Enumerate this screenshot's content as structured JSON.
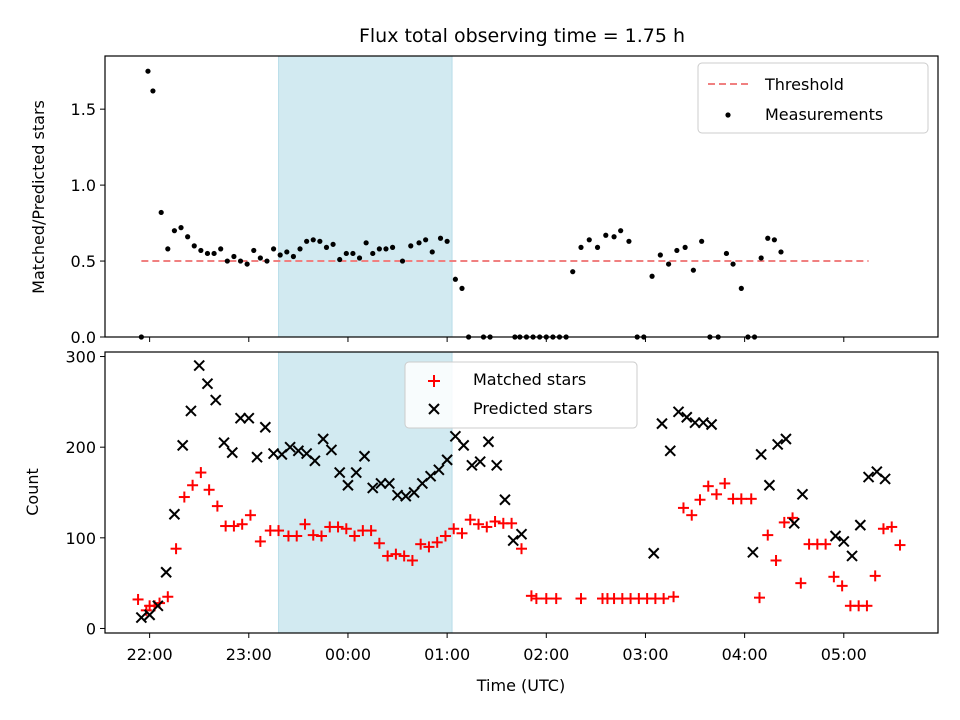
{
  "title": "Flux total observing time = 1.75 h",
  "colors": {
    "threshold": "#f08080",
    "measurement": "#000000",
    "matched": "#ff0000",
    "predicted": "#000000",
    "shaded": "#add8e6"
  },
  "chart_data": [
    {
      "type": "scatter",
      "title": "Flux total observing time = 1.75 h",
      "xlabel": "",
      "ylabel": "Matched/Predicted stars",
      "xlim": [
        "21:33",
        "05:57"
      ],
      "ylim": [
        0,
        1.85
      ],
      "yticks": [
        0.0,
        0.5,
        1.0,
        1.5
      ],
      "ytick_labels": [
        "0.0",
        "0.5",
        "1.0",
        "1.5"
      ],
      "xticks": [
        "22:00",
        "23:00",
        "00:00",
        "01:00",
        "02:00",
        "03:00",
        "04:00",
        "05:00"
      ],
      "shaded_interval": [
        "23:18",
        "01:03"
      ],
      "threshold": {
        "name": "Threshold",
        "value": 0.5,
        "x": [
          "21:55",
          "05:15"
        ]
      },
      "legend": {
        "placement": "upper right",
        "entries": [
          "Threshold",
          "Measurements"
        ]
      },
      "series": [
        {
          "name": "Measurements",
          "points": [
            [
              "21:55",
              0.0
            ],
            [
              "21:59",
              1.75
            ],
            [
              "22:02",
              1.62
            ],
            [
              "22:07",
              0.82
            ],
            [
              "22:11",
              0.58
            ],
            [
              "22:15",
              0.7
            ],
            [
              "22:19",
              0.72
            ],
            [
              "22:23",
              0.66
            ],
            [
              "22:27",
              0.6
            ],
            [
              "22:31",
              0.57
            ],
            [
              "22:35",
              0.55
            ],
            [
              "22:39",
              0.55
            ],
            [
              "22:43",
              0.58
            ],
            [
              "22:47",
              0.5
            ],
            [
              "22:51",
              0.53
            ],
            [
              "22:55",
              0.5
            ],
            [
              "22:59",
              0.48
            ],
            [
              "23:03",
              0.57
            ],
            [
              "23:07",
              0.52
            ],
            [
              "23:11",
              0.5
            ],
            [
              "23:15",
              0.58
            ],
            [
              "23:19",
              0.54
            ],
            [
              "23:23",
              0.56
            ],
            [
              "23:27",
              0.53
            ],
            [
              "23:31",
              0.58
            ],
            [
              "23:35",
              0.63
            ],
            [
              "23:39",
              0.64
            ],
            [
              "23:43",
              0.63
            ],
            [
              "23:47",
              0.59
            ],
            [
              "23:51",
              0.61
            ],
            [
              "23:55",
              0.51
            ],
            [
              "23:59",
              0.55
            ],
            [
              "00:03",
              0.55
            ],
            [
              "00:07",
              0.52
            ],
            [
              "00:11",
              0.62
            ],
            [
              "00:15",
              0.55
            ],
            [
              "00:19",
              0.58
            ],
            [
              "00:23",
              0.58
            ],
            [
              "00:27",
              0.59
            ],
            [
              "00:33",
              0.5
            ],
            [
              "00:38",
              0.6
            ],
            [
              "00:43",
              0.62
            ],
            [
              "00:47",
              0.64
            ],
            [
              "00:51",
              0.56
            ],
            [
              "00:56",
              0.65
            ],
            [
              "01:00",
              0.63
            ],
            [
              "01:05",
              0.38
            ],
            [
              "01:09",
              0.32
            ],
            [
              "01:13",
              0.0
            ],
            [
              "01:22",
              0.0
            ],
            [
              "01:26",
              0.0
            ],
            [
              "01:41",
              0.0
            ],
            [
              "01:44",
              0.0
            ],
            [
              "01:48",
              0.0
            ],
            [
              "01:52",
              0.0
            ],
            [
              "01:56",
              0.0
            ],
            [
              "02:00",
              0.0
            ],
            [
              "02:04",
              0.0
            ],
            [
              "02:08",
              0.0
            ],
            [
              "02:12",
              0.0
            ],
            [
              "02:16",
              0.43
            ],
            [
              "02:21",
              0.59
            ],
            [
              "02:26",
              0.64
            ],
            [
              "02:31",
              0.59
            ],
            [
              "02:36",
              0.67
            ],
            [
              "02:41",
              0.66
            ],
            [
              "02:45",
              0.7
            ],
            [
              "02:50",
              0.63
            ],
            [
              "02:55",
              0.0
            ],
            [
              "02:59",
              0.0
            ],
            [
              "03:04",
              0.4
            ],
            [
              "03:09",
              0.54
            ],
            [
              "03:14",
              0.48
            ],
            [
              "03:19",
              0.57
            ],
            [
              "03:24",
              0.59
            ],
            [
              "03:29",
              0.44
            ],
            [
              "03:34",
              0.63
            ],
            [
              "03:39",
              0.0
            ],
            [
              "03:44",
              0.0
            ],
            [
              "03:49",
              0.55
            ],
            [
              "03:53",
              0.48
            ],
            [
              "03:58",
              0.32
            ],
            [
              "04:02",
              0.0
            ],
            [
              "04:06",
              0.0
            ],
            [
              "04:10",
              0.52
            ],
            [
              "04:14",
              0.65
            ],
            [
              "04:18",
              0.64
            ],
            [
              "04:22",
              0.56
            ]
          ]
        }
      ]
    },
    {
      "type": "scatter",
      "xlabel": "Time (UTC)",
      "ylabel": "Count",
      "xlim": [
        "21:33",
        "05:57"
      ],
      "ylim": [
        -5,
        305
      ],
      "yticks": [
        0,
        100,
        200,
        300
      ],
      "ytick_labels": [
        "0",
        "100",
        "200",
        "300"
      ],
      "xticks": [
        "22:00",
        "23:00",
        "00:00",
        "01:00",
        "02:00",
        "03:00",
        "04:00",
        "05:00"
      ],
      "shaded_interval": [
        "23:18",
        "01:03"
      ],
      "legend": {
        "placement": "upper center",
        "entries": [
          "Matched stars",
          "Predicted stars"
        ]
      },
      "series": [
        {
          "name": "Matched stars",
          "marker": "+",
          "points": [
            [
              "21:53",
              32
            ],
            [
              "21:58",
              20
            ],
            [
              "22:00",
              25
            ],
            [
              "22:03",
              25
            ],
            [
              "22:06",
              28
            ],
            [
              "22:11",
              35
            ],
            [
              "22:16",
              88
            ],
            [
              "22:21",
              145
            ],
            [
              "22:26",
              158
            ],
            [
              "22:31",
              172
            ],
            [
              "22:36",
              153
            ],
            [
              "22:41",
              135
            ],
            [
              "22:46",
              113
            ],
            [
              "22:51",
              113
            ],
            [
              "22:56",
              115
            ],
            [
              "23:01",
              125
            ],
            [
              "23:07",
              96
            ],
            [
              "23:13",
              108
            ],
            [
              "23:18",
              108
            ],
            [
              "23:24",
              102
            ],
            [
              "23:29",
              102
            ],
            [
              "23:34",
              115
            ],
            [
              "23:39",
              103
            ],
            [
              "23:44",
              102
            ],
            [
              "23:49",
              112
            ],
            [
              "23:54",
              112
            ],
            [
              "23:59",
              110
            ],
            [
              "00:04",
              102
            ],
            [
              "00:09",
              108
            ],
            [
              "00:14",
              108
            ],
            [
              "00:19",
              94
            ],
            [
              "00:24",
              80
            ],
            [
              "00:29",
              82
            ],
            [
              "00:34",
              80
            ],
            [
              "00:39",
              75
            ],
            [
              "00:44",
              93
            ],
            [
              "00:49",
              90
            ],
            [
              "00:54",
              95
            ],
            [
              "00:59",
              102
            ],
            [
              "01:04",
              110
            ],
            [
              "01:09",
              105
            ],
            [
              "01:14",
              120
            ],
            [
              "01:19",
              115
            ],
            [
              "01:24",
              112
            ],
            [
              "01:29",
              118
            ],
            [
              "01:34",
              116
            ],
            [
              "01:39",
              116
            ],
            [
              "01:45",
              88
            ],
            [
              "01:51",
              36
            ],
            [
              "01:54",
              33
            ],
            [
              "02:00",
              33
            ],
            [
              "02:06",
              33
            ],
            [
              "02:21",
              33
            ],
            [
              "02:34",
              33
            ],
            [
              "02:37",
              33
            ],
            [
              "02:41",
              33
            ],
            [
              "02:46",
              33
            ],
            [
              "02:51",
              33
            ],
            [
              "02:56",
              33
            ],
            [
              "03:01",
              33
            ],
            [
              "03:06",
              33
            ],
            [
              "03:11",
              33
            ],
            [
              "03:17",
              35
            ],
            [
              "03:23",
              133
            ],
            [
              "03:28",
              125
            ],
            [
              "03:33",
              142
            ],
            [
              "03:38",
              157
            ],
            [
              "03:43",
              148
            ],
            [
              "03:48",
              160
            ],
            [
              "03:53",
              143
            ],
            [
              "03:58",
              143
            ],
            [
              "04:04",
              143
            ],
            [
              "04:09",
              34
            ],
            [
              "04:14",
              103
            ],
            [
              "04:19",
              75
            ],
            [
              "04:24",
              117
            ],
            [
              "04:29",
              122
            ],
            [
              "04:34",
              50
            ],
            [
              "04:39",
              93
            ],
            [
              "04:44",
              93
            ],
            [
              "04:49",
              93
            ],
            [
              "04:54",
              57
            ],
            [
              "04:59",
              47
            ],
            [
              "05:04",
              25
            ],
            [
              "05:09",
              25
            ],
            [
              "05:14",
              25
            ],
            [
              "05:19",
              58
            ],
            [
              "05:24",
              110
            ],
            [
              "05:29",
              112
            ],
            [
              "05:34",
              92
            ]
          ]
        },
        {
          "name": "Predicted stars",
          "marker": "x",
          "points": [
            [
              "21:55",
              12
            ],
            [
              "22:00",
              15
            ],
            [
              "22:05",
              25
            ],
            [
              "22:10",
              62
            ],
            [
              "22:15",
              126
            ],
            [
              "22:20",
              202
            ],
            [
              "22:25",
              240
            ],
            [
              "22:30",
              290
            ],
            [
              "22:35",
              270
            ],
            [
              "22:40",
              252
            ],
            [
              "22:45",
              205
            ],
            [
              "22:50",
              194
            ],
            [
              "22:55",
              232
            ],
            [
              "23:00",
              232
            ],
            [
              "23:05",
              189
            ],
            [
              "23:10",
              222
            ],
            [
              "23:15",
              193
            ],
            [
              "23:20",
              192
            ],
            [
              "23:25",
              200
            ],
            [
              "23:30",
              196
            ],
            [
              "23:35",
              193
            ],
            [
              "23:40",
              185
            ],
            [
              "23:45",
              209
            ],
            [
              "23:50",
              197
            ],
            [
              "23:55",
              172
            ],
            [
              "00:00",
              158
            ],
            [
              "00:05",
              172
            ],
            [
              "00:10",
              190
            ],
            [
              "00:15",
              155
            ],
            [
              "00:20",
              160
            ],
            [
              "00:25",
              160
            ],
            [
              "00:30",
              147
            ],
            [
              "00:35",
              146
            ],
            [
              "00:40",
              150
            ],
            [
              "00:45",
              160
            ],
            [
              "00:50",
              168
            ],
            [
              "00:55",
              175
            ],
            [
              "01:00",
              186
            ],
            [
              "01:05",
              212
            ],
            [
              "01:10",
              202
            ],
            [
              "01:15",
              180
            ],
            [
              "01:20",
              184
            ],
            [
              "01:25",
              206
            ],
            [
              "01:30",
              180
            ],
            [
              "01:35",
              142
            ],
            [
              "01:40",
              97
            ],
            [
              "01:45",
              104
            ],
            [
              "03:05",
              83
            ],
            [
              "03:10",
              226
            ],
            [
              "03:15",
              196
            ],
            [
              "03:20",
              239
            ],
            [
              "03:25",
              233
            ],
            [
              "03:30",
              227
            ],
            [
              "03:35",
              227
            ],
            [
              "03:40",
              225
            ],
            [
              "04:05",
              84
            ],
            [
              "04:10",
              192
            ],
            [
              "04:15",
              158
            ],
            [
              "04:20",
              203
            ],
            [
              "04:25",
              209
            ],
            [
              "04:30",
              116
            ],
            [
              "04:35",
              148
            ],
            [
              "04:55",
              102
            ],
            [
              "05:00",
              96
            ],
            [
              "05:05",
              80
            ],
            [
              "05:10",
              114
            ],
            [
              "05:15",
              167
            ],
            [
              "05:20",
              173
            ],
            [
              "05:25",
              165
            ]
          ]
        }
      ]
    }
  ]
}
